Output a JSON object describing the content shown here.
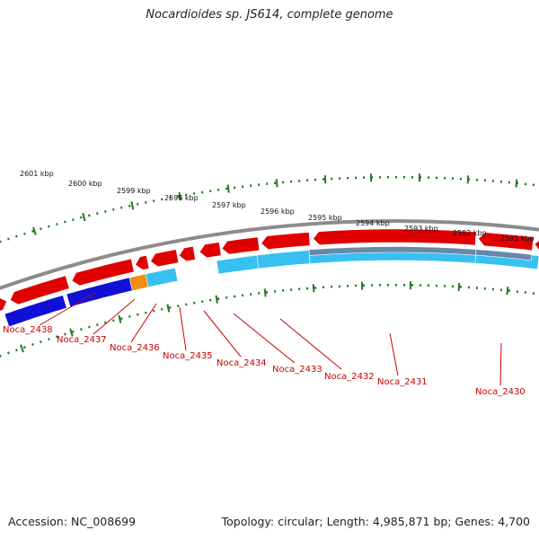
{
  "title": "Nocardioides sp. JS614, complete genome",
  "accession": "Accession: NC_008699",
  "summary": "Topology: circular; Length: 4,985,871 bp; Genes: 4,700",
  "colors": {
    "backbone": "#8c8c8c",
    "forward_cds": "#e00000",
    "reverse_cds_dark_blue": "#1010d8",
    "reverse_cds_light_blue": "#38c0f0",
    "reverse_cds_orange": "#f08c10",
    "reverse_cds_gray_blue": "#6688aa",
    "ticks": "#1e7a1e",
    "labels": "#cc0000"
  },
  "kbp_ticks": [
    "2601 kbp",
    "2600 kbp",
    "2599 kbp",
    "2598 kbp",
    "2597 kbp",
    "2596 kbp",
    "2595 kbp",
    "2594 kbp",
    "2593 kbp",
    "2592 kbp",
    "2591 kbp"
  ],
  "gene_labels": [
    "Noca_2438",
    "Noca_2437",
    "Noca_2436",
    "Noca_2435",
    "Noca_2434",
    "Noca_2433",
    "Noca_2432",
    "Noca_2431",
    "Noca_2430"
  ]
}
